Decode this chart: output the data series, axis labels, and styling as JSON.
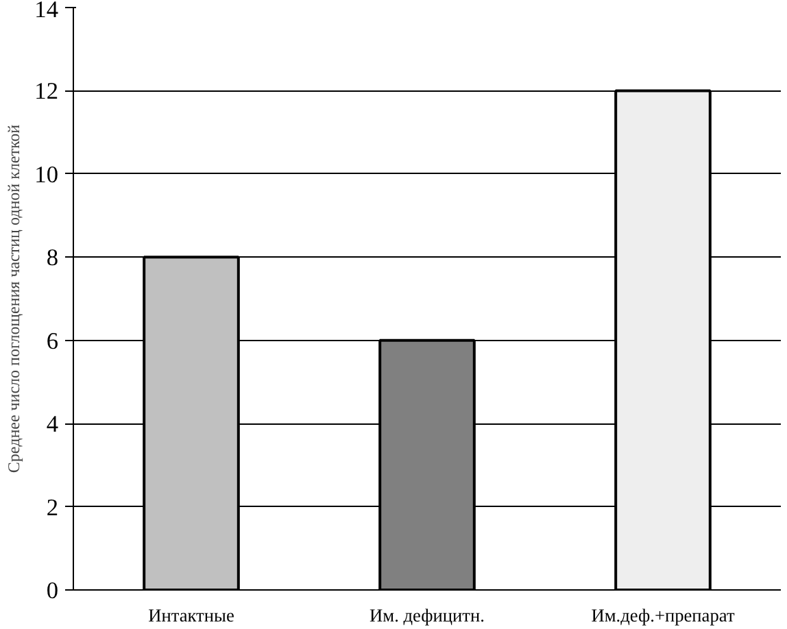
{
  "chart_data": {
    "type": "bar",
    "ylabel": "Среднее число поглощения частиц одной клеткой",
    "categories": [
      "Интактные",
      "Им. дефицитн.",
      "Им.деф.+препарат"
    ],
    "values": [
      8,
      6,
      12
    ],
    "colors": [
      "#c0c0c0",
      "#808080",
      "#eeeeee"
    ],
    "ylim": [
      0,
      14
    ],
    "yticks": [
      0,
      2,
      4,
      6,
      8,
      10,
      12,
      14
    ],
    "grid": "y"
  }
}
